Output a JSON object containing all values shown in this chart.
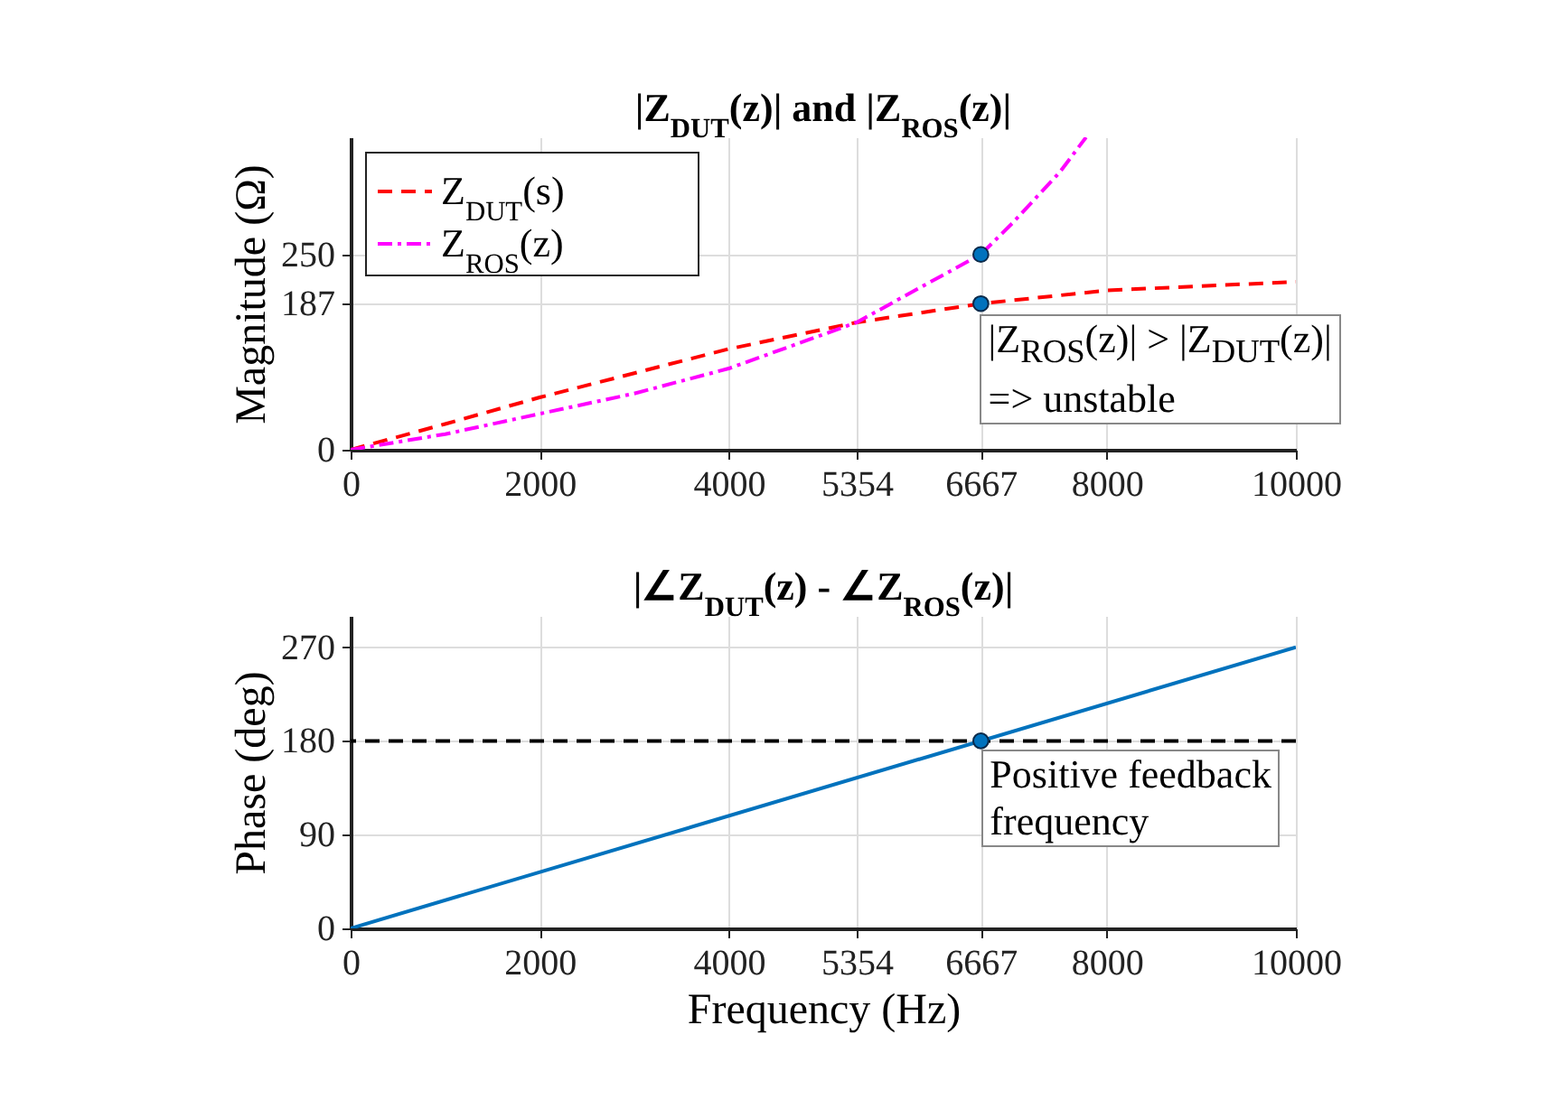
{
  "chart_data": [
    {
      "type": "line",
      "title": "|Z$_{DUT}$(z)| and |Z$_{ROS}$(z)|",
      "ylabel": "Magnitude (Ω)",
      "xlim": [
        0,
        10000
      ],
      "xticks": [
        0,
        2000,
        4000,
        5354,
        6667,
        8000,
        10000
      ],
      "ylim": [
        0,
        400
      ],
      "yticks": [
        0,
        187,
        250
      ],
      "grid": true,
      "legend": "top left",
      "series": [
        {
          "name": "Z$_{DUT}$(s)",
          "color": "#ff0000",
          "line_style": "dashed",
          "x": [
            0,
            1000,
            2000,
            3000,
            4000,
            5354,
            6667,
            8000,
            10000
          ],
          "values": [
            0,
            33,
            67,
            98,
            129,
            163,
            187,
            204,
            215
          ]
        },
        {
          "name": "Z$_{ROS}$(z)",
          "color": "#ff00ff",
          "line_style": "dashdot",
          "x": [
            0,
            1000,
            2000,
            3000,
            4000,
            5354,
            6000,
            6667,
            7000,
            7500,
            7780
          ],
          "values": [
            0,
            20,
            46,
            72,
            104,
            163,
            206,
            250,
            290,
            355,
            400
          ]
        },
        {
          "type": "scatter",
          "color": "#0072bd",
          "marker": "circle",
          "x": [
            6667,
            6667
          ],
          "values": [
            250,
            187
          ]
        }
      ],
      "annotations": [
        "|Z$_{ROS}$(z)| > |Z$_{DUT}$(z)|\n=> unstable"
      ]
    },
    {
      "type": "line",
      "title": "|∠Z$_{DUT}$(z) - ∠Z$_{ROS}$(z)|",
      "xlabel": "Frequency (Hz)",
      "ylabel": "Phase (deg)",
      "xlim": [
        0,
        10000
      ],
      "xticks": [
        0,
        2000,
        4000,
        5354,
        6667,
        8000,
        10000
      ],
      "ylim": [
        0,
        300
      ],
      "yticks": [
        0,
        90,
        180,
        270
      ],
      "grid": true,
      "series": [
        {
          "color": "#0072bd",
          "line_style": "solid",
          "x": [
            0,
            10000
          ],
          "values": [
            0,
            270
          ]
        },
        {
          "type": "scatter",
          "color": "#0072bd",
          "marker": "circle",
          "x": [
            6667
          ],
          "values": [
            180
          ]
        }
      ],
      "ref_lines": [
        {
          "axis": "y",
          "value": 180,
          "color": "#000000",
          "line_style": "dashed"
        }
      ],
      "annotations": [
        {
          "text": "Positive feedback\nfrequency",
          "x": 6667,
          "y": 180
        }
      ]
    }
  ]
}
